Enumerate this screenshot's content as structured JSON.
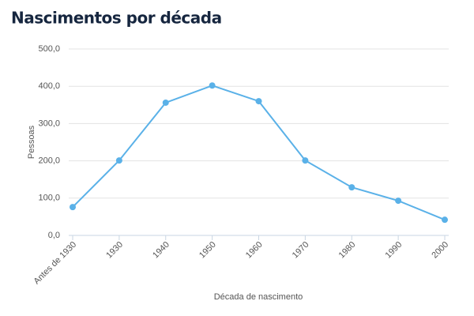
{
  "chart_data": {
    "type": "line",
    "title": "Nascimentos por década",
    "x_label": "Década de nascimento",
    "y_label": "Pessoas",
    "categories": [
      "Antes de 1930",
      "1930",
      "1940",
      "1950",
      "1960",
      "1970",
      "1980",
      "1990",
      "2000"
    ],
    "series": [
      {
        "name": "Pessoas",
        "color": "#5ab1e8",
        "values": [
          76,
          201,
          356,
          402,
          360,
          201,
          129,
          93,
          42
        ]
      }
    ],
    "ylim": [
      0,
      500
    ],
    "yticks": [
      {
        "value": 0,
        "label": "0,0"
      },
      {
        "value": 100,
        "label": "100,0"
      },
      {
        "value": 200,
        "label": "200,0"
      },
      {
        "value": 300,
        "label": "300,0"
      },
      {
        "value": 400,
        "label": "400,0"
      },
      {
        "value": 500,
        "label": "500,0"
      }
    ],
    "grid": true
  }
}
